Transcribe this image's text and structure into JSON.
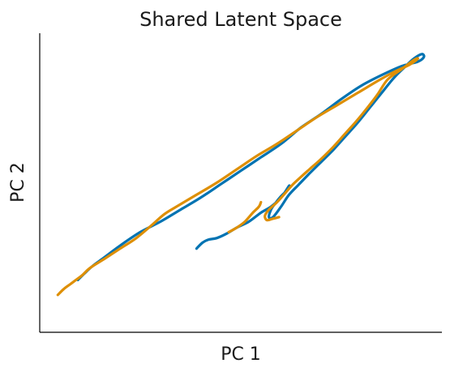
{
  "chart_data": {
    "type": "line",
    "title": "Shared Latent Space",
    "xlabel": "PC 1",
    "ylabel": "PC 2",
    "xlim": [
      0,
      100
    ],
    "ylim": [
      0,
      100
    ],
    "grid": false,
    "x_ticks_visible": false,
    "y_ticks_visible": false,
    "series": [
      {
        "color": "#0173b2",
        "x": [
          39.0,
          40.5,
          42.0,
          44.0,
          46.5,
          49.0,
          52.0,
          55.0,
          57.5,
          60.0,
          62.0,
          61.5,
          60.0,
          58.5,
          57.5,
          57.0,
          58.0,
          60.0,
          62.0,
          64.5,
          67.0,
          70.0,
          73.0,
          76.0,
          79.0,
          82.0,
          85.0,
          88.0,
          91.0,
          93.0,
          95.0,
          95.5,
          94.0,
          90.0,
          85.0,
          80.0,
          75.0,
          70.0,
          65.0,
          60.0,
          55.0,
          50.0,
          45.0,
          40.0,
          35.0,
          30.0,
          25.0,
          20.0,
          16.0,
          13.0,
          11.0,
          9.5
        ],
        "y": [
          28.0,
          30.0,
          31.0,
          31.5,
          33.0,
          35.0,
          37.0,
          40.0,
          42.0,
          45.0,
          49.0,
          47.5,
          45.5,
          43.0,
          41.0,
          38.5,
          38.5,
          42.0,
          46.0,
          49.5,
          53.0,
          57.0,
          61.0,
          65.5,
          70.0,
          75.0,
          80.0,
          85.0,
          89.0,
          91.5,
          93.0,
          92.0,
          90.5,
          89.0,
          86.0,
          82.5,
          78.0,
          73.0,
          68.5,
          63.0,
          58.5,
          54.0,
          49.5,
          45.0,
          41.0,
          37.0,
          33.5,
          29.0,
          25.0,
          22.0,
          19.5,
          17.5
        ]
      },
      {
        "color": "#de8f05",
        "x": [
          59.5,
          58.0,
          56.5,
          56.0,
          57.0,
          59.0,
          61.0,
          63.0,
          65.0,
          67.5,
          70.0,
          73.0,
          76.0,
          79.0,
          82.0,
          84.0,
          86.5,
          90.0,
          93.0,
          94.0,
          92.0,
          88.0,
          84.0,
          79.0,
          74.0,
          69.0,
          64.0,
          59.0,
          54.0,
          49.0,
          44.0,
          39.0,
          34.0,
          31.0,
          28.0,
          24.0,
          20.0,
          16.0,
          12.5,
          10.5,
          8.5,
          7.5,
          6.0,
          4.5
        ],
        "y": [
          38.5,
          38.0,
          37.5,
          39.0,
          41.0,
          43.5,
          46.5,
          49.5,
          52.0,
          55.0,
          58.0,
          62.0,
          66.5,
          71.0,
          76.0,
          79.5,
          84.5,
          88.0,
          91.0,
          91.5,
          89.5,
          87.0,
          84.0,
          80.0,
          76.0,
          72.0,
          67.5,
          63.0,
          59.0,
          54.5,
          50.0,
          46.0,
          42.0,
          39.5,
          36.0,
          31.5,
          28.0,
          24.5,
          21.5,
          19.0,
          17.0,
          16.0,
          14.5,
          12.5
        ]
      },
      {
        "color": "#de8f05",
        "x": [
          47.0,
          49.0,
          51.0,
          53.0,
          54.5,
          55.0
        ],
        "y": [
          33.5,
          35.0,
          37.0,
          40.0,
          42.0,
          43.5
        ]
      }
    ]
  }
}
